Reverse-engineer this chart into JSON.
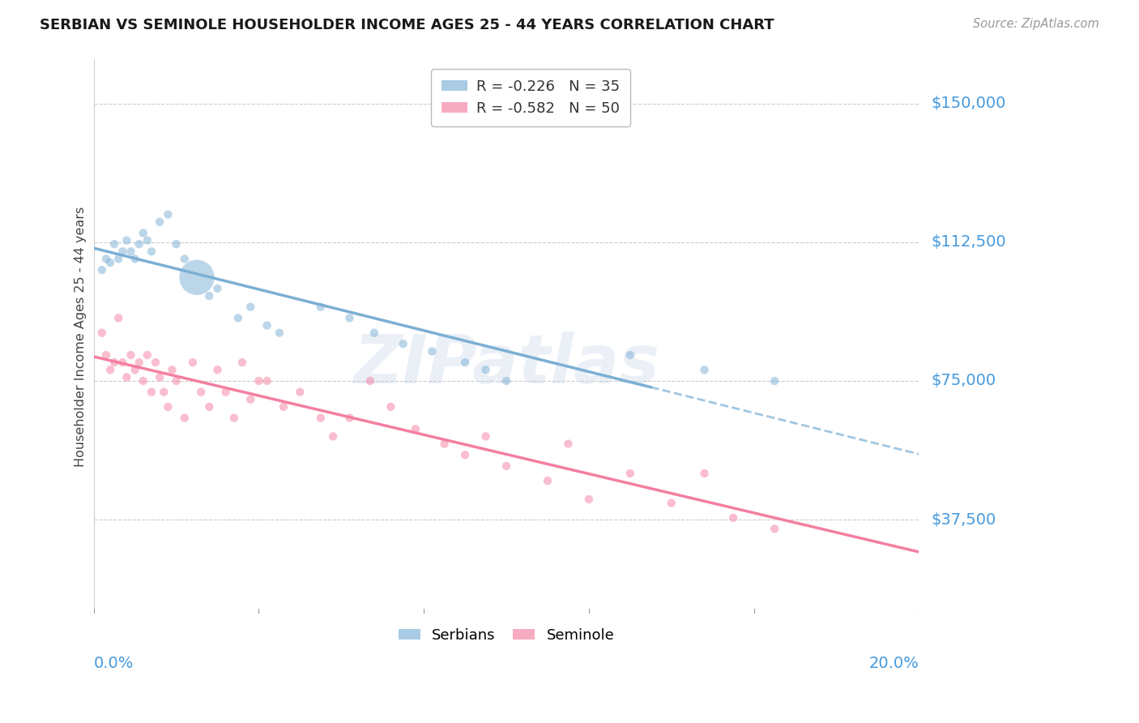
{
  "title": "SERBIAN VS SEMINOLE HOUSEHOLDER INCOME AGES 25 - 44 YEARS CORRELATION CHART",
  "source": "Source: ZipAtlas.com",
  "ylabel": "Householder Income Ages 25 - 44 years",
  "ytick_labels": [
    "$150,000",
    "$112,500",
    "$75,000",
    "$37,500"
  ],
  "ytick_values": [
    150000,
    112500,
    75000,
    37500
  ],
  "serbian_color": "#7bafd4",
  "seminole_color": "#f47fa0",
  "background_color": "#ffffff",
  "grid_color": "#cccccc",
  "title_color": "#1a1a1a",
  "axis_label_color": "#4499dd",
  "watermark_text": "ZIPatlas",
  "watermark_color": "#b8cce4",
  "xmin": 0.0,
  "xmax": 0.2,
  "ymin": 12000,
  "ymax": 162000,
  "serbian_R": -0.226,
  "serbian_N": 35,
  "seminole_R": -0.582,
  "seminole_N": 50,
  "serbian_trend_solid_end": 0.135,
  "serbian_trend_dash_end": 0.2,
  "seminole_trend_end": 0.2,
  "serbian_points": [
    [
      0.002,
      105000,
      200
    ],
    [
      0.003,
      108000,
      200
    ],
    [
      0.004,
      107000,
      200
    ],
    [
      0.005,
      112000,
      200
    ],
    [
      0.006,
      108000,
      200
    ],
    [
      0.007,
      110000,
      200
    ],
    [
      0.008,
      113000,
      200
    ],
    [
      0.009,
      110000,
      200
    ],
    [
      0.01,
      108000,
      200
    ],
    [
      0.011,
      112000,
      200
    ],
    [
      0.012,
      115000,
      200
    ],
    [
      0.013,
      113000,
      200
    ],
    [
      0.014,
      110000,
      200
    ],
    [
      0.016,
      118000,
      200
    ],
    [
      0.018,
      120000,
      200
    ],
    [
      0.02,
      112000,
      200
    ],
    [
      0.022,
      108000,
      200
    ],
    [
      0.025,
      103000,
      3500
    ],
    [
      0.028,
      98000,
      200
    ],
    [
      0.03,
      100000,
      200
    ],
    [
      0.035,
      92000,
      200
    ],
    [
      0.038,
      95000,
      200
    ],
    [
      0.042,
      90000,
      200
    ],
    [
      0.045,
      88000,
      200
    ],
    [
      0.055,
      95000,
      200
    ],
    [
      0.062,
      92000,
      200
    ],
    [
      0.068,
      88000,
      200
    ],
    [
      0.075,
      85000,
      200
    ],
    [
      0.082,
      83000,
      200
    ],
    [
      0.09,
      80000,
      200
    ],
    [
      0.095,
      78000,
      200
    ],
    [
      0.1,
      75000,
      200
    ],
    [
      0.13,
      82000,
      200
    ],
    [
      0.148,
      78000,
      200
    ],
    [
      0.165,
      75000,
      200
    ]
  ],
  "seminole_points": [
    [
      0.002,
      88000
    ],
    [
      0.003,
      82000
    ],
    [
      0.004,
      78000
    ],
    [
      0.005,
      80000
    ],
    [
      0.006,
      92000
    ],
    [
      0.007,
      80000
    ],
    [
      0.008,
      76000
    ],
    [
      0.009,
      82000
    ],
    [
      0.01,
      78000
    ],
    [
      0.011,
      80000
    ],
    [
      0.012,
      75000
    ],
    [
      0.013,
      82000
    ],
    [
      0.014,
      72000
    ],
    [
      0.015,
      80000
    ],
    [
      0.016,
      76000
    ],
    [
      0.017,
      72000
    ],
    [
      0.018,
      68000
    ],
    [
      0.019,
      78000
    ],
    [
      0.02,
      75000
    ],
    [
      0.022,
      65000
    ],
    [
      0.024,
      80000
    ],
    [
      0.026,
      72000
    ],
    [
      0.028,
      68000
    ],
    [
      0.03,
      78000
    ],
    [
      0.032,
      72000
    ],
    [
      0.034,
      65000
    ],
    [
      0.036,
      80000
    ],
    [
      0.038,
      70000
    ],
    [
      0.04,
      75000
    ],
    [
      0.042,
      75000
    ],
    [
      0.046,
      68000
    ],
    [
      0.05,
      72000
    ],
    [
      0.055,
      65000
    ],
    [
      0.058,
      60000
    ],
    [
      0.062,
      65000
    ],
    [
      0.067,
      75000
    ],
    [
      0.072,
      68000
    ],
    [
      0.078,
      62000
    ],
    [
      0.085,
      58000
    ],
    [
      0.09,
      55000
    ],
    [
      0.095,
      60000
    ],
    [
      0.1,
      52000
    ],
    [
      0.11,
      48000
    ],
    [
      0.115,
      58000
    ],
    [
      0.12,
      43000
    ],
    [
      0.13,
      50000
    ],
    [
      0.14,
      42000
    ],
    [
      0.148,
      50000
    ],
    [
      0.155,
      38000
    ],
    [
      0.165,
      35000
    ]
  ]
}
